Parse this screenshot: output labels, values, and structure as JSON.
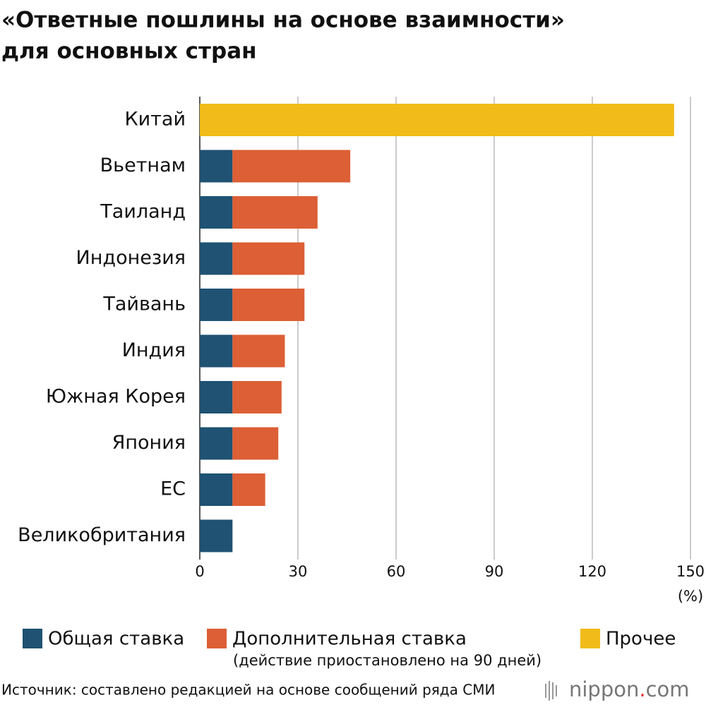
{
  "chart_data": {
    "type": "stacked-barh",
    "title_lines": [
      "«Ответные пошлины на основе взаимности»",
      "для основных стран"
    ],
    "categories": [
      "Китай",
      "Вьетнам",
      "Таиланд",
      "Индонезия",
      "Тайвань",
      "Индия",
      "Южная Корея",
      "Япония",
      "ЕС",
      "Великобритания"
    ],
    "series": [
      {
        "name": "Общая ставка",
        "color": "#1f5273",
        "values": [
          null,
          10,
          10,
          10,
          10,
          10,
          10,
          10,
          10,
          10
        ]
      },
      {
        "name": "Дополнительная ставка",
        "color": "#dc5f35",
        "values": [
          null,
          36,
          26,
          22,
          22,
          16,
          15,
          14,
          10,
          null
        ]
      },
      {
        "name": "Прочее",
        "color": "#f1bc19",
        "values": [
          145,
          null,
          null,
          null,
          null,
          null,
          null,
          null,
          null,
          null
        ]
      }
    ],
    "legend_note": "(действие приостановлено на 90 дней)",
    "xlim": [
      0,
      150
    ],
    "xticks": [
      0,
      30,
      60,
      90,
      120,
      150
    ],
    "x_unit": "(%)",
    "grid": true,
    "source": "Источник: составлено редакцией на основе сообщений ряда СМИ",
    "logo": [
      "nippon",
      ".",
      "com"
    ]
  }
}
